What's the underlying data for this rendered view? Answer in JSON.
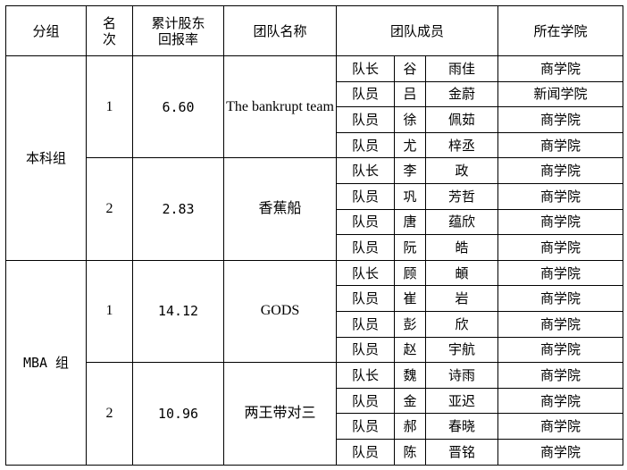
{
  "headers": {
    "group": "分组",
    "rank_line1": "名",
    "rank_line2": "次",
    "return_line1": "累计股东",
    "return_line2": "回报率",
    "team_name": "团队名称",
    "members": "团队成员",
    "college": "所在学院"
  },
  "groups": [
    {
      "name": "本科组",
      "teams": [
        {
          "rank": "1",
          "return": "6.60",
          "team": "The bankrupt team",
          "members": [
            {
              "role": "队长",
              "surname": "谷",
              "given": "雨佳",
              "college": "商学院"
            },
            {
              "role": "队员",
              "surname": "吕",
              "given": "金蔚",
              "college": "新闻学院"
            },
            {
              "role": "队员",
              "surname": "徐",
              "given": "佩茹",
              "college": "商学院"
            },
            {
              "role": "队员",
              "surname": "尤",
              "given": "梓丞",
              "college": "商学院"
            }
          ]
        },
        {
          "rank": "2",
          "return": "2.83",
          "team": "香蕉船",
          "members": [
            {
              "role": "队长",
              "surname": "李",
              "given": "政",
              "college": "商学院"
            },
            {
              "role": "队员",
              "surname": "巩",
              "given": "芳哲",
              "college": "商学院"
            },
            {
              "role": "队员",
              "surname": "唐",
              "given": "蕴欣",
              "college": "商学院"
            },
            {
              "role": "队员",
              "surname": "阮",
              "given": "皓",
              "college": "商学院"
            }
          ]
        }
      ]
    },
    {
      "name": "MBA 组",
      "teams": [
        {
          "rank": "1",
          "return": "14.12",
          "team": "GODS",
          "members": [
            {
              "role": "队长",
              "surname": "顾",
              "given": "頔",
              "college": "商学院"
            },
            {
              "role": "队员",
              "surname": "崔",
              "given": "岩",
              "college": "商学院"
            },
            {
              "role": "队员",
              "surname": "彭",
              "given": "欣",
              "college": "商学院"
            },
            {
              "role": "队员",
              "surname": "赵",
              "given": "宇航",
              "college": "商学院"
            }
          ]
        },
        {
          "rank": "2",
          "return": "10.96",
          "team": "两王带对三",
          "members": [
            {
              "role": "队长",
              "surname": "魏",
              "given": "诗雨",
              "college": "商学院"
            },
            {
              "role": "队员",
              "surname": "金",
              "given": "亚迟",
              "college": "商学院"
            },
            {
              "role": "队员",
              "surname": "郝",
              "given": "春晓",
              "college": "商学院"
            },
            {
              "role": "队员",
              "surname": "陈",
              "given": "晋铭",
              "college": "商学院"
            }
          ]
        }
      ]
    }
  ]
}
